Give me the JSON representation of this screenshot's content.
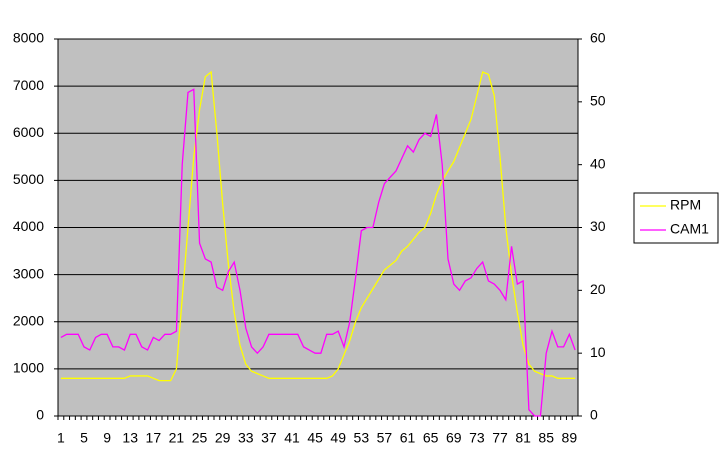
{
  "chart_data": {
    "type": "line",
    "categories": [
      "1",
      null,
      null,
      null,
      "5",
      null,
      null,
      null,
      "9",
      null,
      null,
      null,
      "13",
      null,
      null,
      null,
      "17",
      null,
      null,
      null,
      "21",
      null,
      null,
      null,
      "25",
      null,
      null,
      null,
      "29",
      null,
      null,
      null,
      "33",
      null,
      null,
      null,
      "37",
      null,
      null,
      null,
      "41",
      null,
      null,
      null,
      "45",
      null,
      null,
      null,
      "49",
      null,
      null,
      null,
      "53",
      null,
      null,
      null,
      "57",
      null,
      null,
      null,
      "61",
      null,
      null,
      null,
      "65",
      null,
      null,
      null,
      "69",
      null,
      null,
      null,
      "73",
      null,
      null,
      null,
      "77",
      null,
      null,
      null,
      "81",
      null,
      null,
      null,
      "85",
      null,
      null,
      null,
      "89",
      null
    ],
    "series": [
      {
        "name": "RPM",
        "color": "#ffff00",
        "values": [
          800,
          800,
          800,
          800,
          800,
          800,
          800,
          800,
          800,
          800,
          800,
          800,
          850,
          850,
          850,
          850,
          800,
          750,
          750,
          750,
          1000,
          2500,
          4000,
          5500,
          6500,
          7200,
          7300,
          6000,
          4500,
          3200,
          2200,
          1500,
          1100,
          950,
          900,
          850,
          800,
          800,
          800,
          800,
          800,
          800,
          800,
          800,
          800,
          800,
          800,
          850,
          1000,
          1300,
          1600,
          2000,
          2300,
          2500,
          2700,
          2900,
          3100,
          3200,
          3300,
          3500,
          3600,
          3750,
          3900,
          4000,
          4300,
          4700,
          5000,
          5200,
          5400,
          5700,
          6000,
          6300,
          6800,
          7300,
          7250,
          6800,
          5500,
          4000,
          3000,
          2200,
          1500,
          1100,
          950,
          900,
          850,
          850,
          800,
          800,
          800,
          800
        ]
      },
      {
        "name": "CAM1",
        "color": "#ff00ff",
        "axis": "y2",
        "values": [
          12.5,
          13,
          13,
          13,
          11,
          10.5,
          12.5,
          13,
          13,
          11,
          11,
          10.5,
          13,
          13,
          11,
          10.5,
          12.5,
          12,
          13,
          13,
          13.5,
          40,
          51.5,
          52,
          27.5,
          25,
          24.5,
          20.5,
          20,
          23,
          24.5,
          20,
          14,
          11,
          10,
          11,
          13,
          13,
          13,
          13,
          13,
          13,
          11,
          10.5,
          10,
          10,
          13,
          13,
          13.5,
          11,
          15,
          22,
          29.5,
          30,
          30,
          34,
          37,
          38,
          39,
          41,
          43,
          42,
          44,
          45,
          44.5,
          48,
          40,
          25,
          21,
          20,
          21.5,
          22,
          23.5,
          24.5,
          21.5,
          21,
          20,
          18.5,
          27,
          21,
          21.5,
          1,
          0,
          0,
          10,
          13.5,
          11,
          11,
          13,
          10.5
        ]
      }
    ],
    "ylim": [
      0,
      8000
    ],
    "yticks": [
      0,
      1000,
      2000,
      3000,
      4000,
      5000,
      6000,
      7000,
      8000
    ],
    "y2lim": [
      0,
      60
    ],
    "y2ticks": [
      0,
      10,
      20,
      30,
      40,
      50,
      60
    ],
    "grid": true,
    "background": "#c0c0c0",
    "legend": "right"
  }
}
